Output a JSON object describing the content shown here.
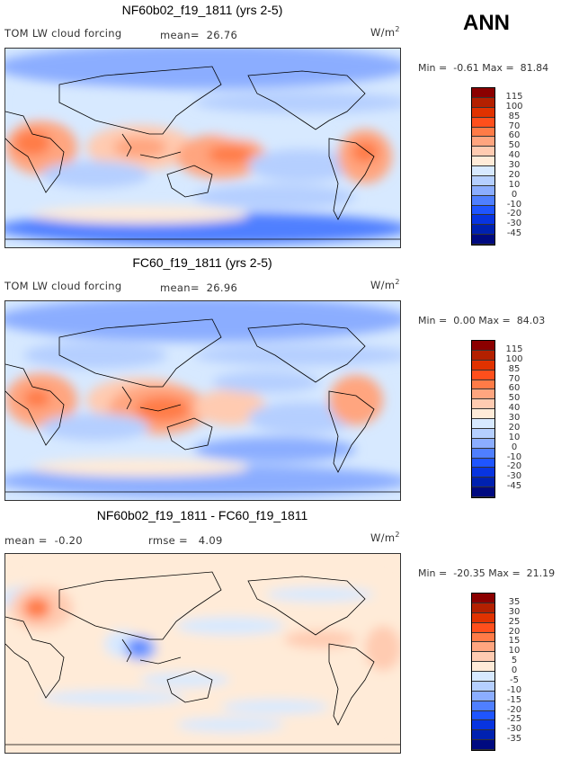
{
  "season": "ANN",
  "units": "W/m2",
  "colors": [
    "#8b0000",
    "#b32000",
    "#e03200",
    "#ff4f1c",
    "#ff7b47",
    "#ffa57f",
    "#ffcbb1",
    "#ffebd8",
    "#d7e9ff",
    "#b5cfff",
    "#8badff",
    "#4f7fff",
    "#1f55ff",
    "#0834e0",
    "#0021b0",
    "#000a80"
  ],
  "panels": [
    {
      "title": "NF60b02_f19_1811 (yrs 2-5)",
      "variable": "TOM LW cloud forcing",
      "mean_label": "mean=",
      "mean": "26.76",
      "units_label": "W/m",
      "units_sup": "2",
      "min_label": "Min =",
      "min": "-0.61",
      "max_label": "Max =",
      "max": "81.84",
      "levels": [
        "115",
        "100",
        "85",
        "70",
        "60",
        "50",
        "40",
        "30",
        "20",
        "10",
        "0",
        "-10",
        "-20",
        "-30",
        "-45"
      ]
    },
    {
      "title": "FC60_f19_1811 (yrs 2-5)",
      "variable": "TOM LW cloud forcing",
      "mean_label": "mean=",
      "mean": "26.96",
      "units_label": "W/m",
      "units_sup": "2",
      "min_label": "Min =",
      "min": "0.00",
      "max_label": "Max =",
      "max": "84.03",
      "levels": [
        "115",
        "100",
        "85",
        "70",
        "60",
        "50",
        "40",
        "30",
        "20",
        "10",
        "0",
        "-10",
        "-20",
        "-30",
        "-45"
      ]
    },
    {
      "title": "NF60b02_f19_1811 - FC60_f19_1811",
      "mean_label": "mean =",
      "mean": "-0.20",
      "rmse_label": "rmse =",
      "rmse": "4.09",
      "units_label": "W/m",
      "units_sup": "2",
      "min_label": "Min =",
      "min": "-20.35",
      "max_label": "Max =",
      "max": "21.19",
      "levels": [
        "35",
        "30",
        "25",
        "20",
        "15",
        "10",
        "5",
        "0",
        "-5",
        "-10",
        "-15",
        "-20",
        "-25",
        "-30",
        "-35"
      ]
    }
  ]
}
